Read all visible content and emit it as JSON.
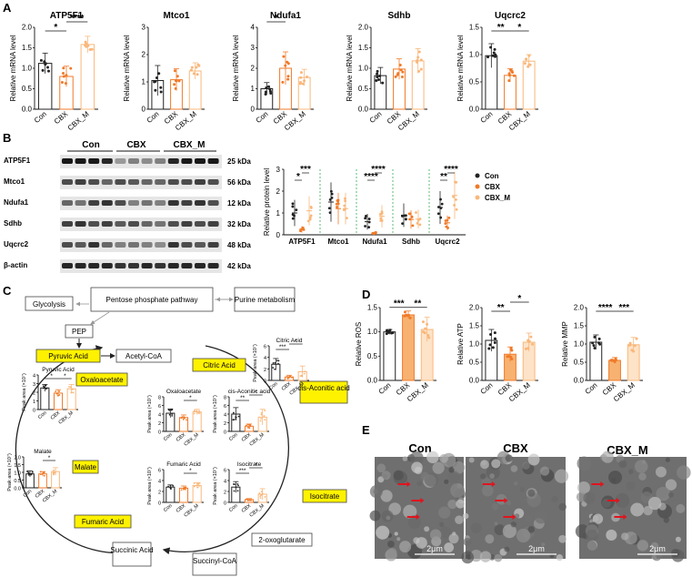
{
  "panels": {
    "A": "A",
    "B": "B",
    "C": "C",
    "D": "D",
    "E": "E"
  },
  "groups": [
    "Con",
    "CBX",
    "CBX_M"
  ],
  "colors": {
    "con": "#222222",
    "cbx": "#f07a28",
    "cbxm": "#f9b77a",
    "hl": "#fff200",
    "sig": "#1d9e3a"
  },
  "chart_data": [
    {
      "type": "bar",
      "panel": "A",
      "title": "ATP5F1",
      "ylabel": "Relative mRNA level",
      "categories": [
        "Con",
        "CBX",
        "CBX_M"
      ],
      "values": [
        1.12,
        0.8,
        1.58
      ],
      "errors": [
        0.25,
        0.25,
        0.2
      ],
      "ylim": [
        0,
        2
      ],
      "yticks": [
        "0.0",
        "0.5",
        "1.0",
        "1.5",
        "2.0"
      ],
      "sig": [
        {
          "a": 0,
          "b": 1,
          "t": "*",
          "lvl": 0
        },
        {
          "a": 1,
          "b": 2,
          "t": "****",
          "lvl": 1
        }
      ]
    },
    {
      "type": "bar",
      "panel": "A",
      "title": "Mtco1",
      "ylabel": "Relative mRNA level",
      "categories": [
        "Con",
        "CBX",
        "CBX_M"
      ],
      "values": [
        1.05,
        1.08,
        1.4
      ],
      "errors": [
        0.55,
        0.4,
        0.3
      ],
      "ylim": [
        0,
        3
      ],
      "yticks": [
        "0",
        "1",
        "2",
        "3"
      ],
      "sig": []
    },
    {
      "type": "bar",
      "panel": "A",
      "title": "Ndufa1",
      "ylabel": "Relative mRNA level",
      "categories": [
        "Con",
        "CBX",
        "CBX_M"
      ],
      "values": [
        1.0,
        2.0,
        1.55
      ],
      "errors": [
        0.3,
        0.8,
        0.4
      ],
      "ylim": [
        0,
        4
      ],
      "yticks": [
        "0",
        "1",
        "2",
        "3",
        "4"
      ],
      "sig": [
        {
          "a": 0,
          "b": 1,
          "t": "*",
          "lvl": 1
        }
      ]
    },
    {
      "type": "bar",
      "panel": "A",
      "title": "Sdhb",
      "ylabel": "Relative mRNA level",
      "categories": [
        "Con",
        "CBX",
        "CBX_M"
      ],
      "values": [
        0.82,
        0.98,
        1.18
      ],
      "errors": [
        0.2,
        0.25,
        0.3
      ],
      "ylim": [
        0,
        2
      ],
      "yticks": [
        "0.0",
        "0.5",
        "1.0",
        "1.5",
        "2.0"
      ],
      "sig": []
    },
    {
      "type": "bar",
      "panel": "A",
      "title": "Uqcrc2",
      "ylabel": "Relative mRNA level",
      "categories": [
        "Con",
        "CBX",
        "CBX_M"
      ],
      "values": [
        0.98,
        0.62,
        0.88
      ],
      "errors": [
        0.22,
        0.12,
        0.12
      ],
      "ylim": [
        0,
        1.5
      ],
      "yticks": [
        "0.0",
        "0.5",
        "1.0",
        "1.5"
      ],
      "sig": [
        {
          "a": 0,
          "b": 1,
          "t": "**",
          "lvl": 0
        },
        {
          "a": 1,
          "b": 2,
          "t": "*",
          "lvl": 0
        }
      ]
    },
    {
      "type": "scatter",
      "panel": "B",
      "ylabel": "Relative protein level",
      "categories": [
        "ATP5F1",
        "Mtco1",
        "Ndufa1",
        "Sdhb",
        "Uqcrc2"
      ],
      "ylim": [
        0,
        3
      ],
      "yticks": [
        "0",
        "1",
        "2",
        "3"
      ],
      "series": [
        {
          "name": "Con",
          "values": [
            1.0,
            1.5,
            0.6,
            0.9,
            1.25
          ]
        },
        {
          "name": "CBX",
          "values": [
            0.25,
            1.2,
            0.08,
            0.7,
            0.55
          ]
        },
        {
          "name": "CBX_M",
          "values": [
            1.1,
            1.2,
            0.85,
            0.72,
            1.8
          ]
        }
      ],
      "sig": [
        {
          "cat": 0,
          "a": 0,
          "b": 1,
          "t": "*"
        },
        {
          "cat": 0,
          "a": 1,
          "b": 2,
          "t": "***"
        },
        {
          "cat": 2,
          "a": 0,
          "b": 1,
          "t": "****"
        },
        {
          "cat": 2,
          "a": 1,
          "b": 2,
          "t": "****"
        },
        {
          "cat": 4,
          "a": 0,
          "b": 1,
          "t": "**"
        },
        {
          "cat": 4,
          "a": 1,
          "b": 2,
          "t": "****"
        }
      ]
    },
    {
      "type": "bar",
      "panel": "D",
      "ylabel": "Relative ROS",
      "categories": [
        "Con",
        "CBX",
        "CBX_M"
      ],
      "values": [
        1.0,
        1.35,
        1.05
      ],
      "errors": [
        0.05,
        0.08,
        0.25
      ],
      "ylim": [
        0,
        1.5
      ],
      "yticks": [
        "0.0",
        "0.5",
        "1.0",
        "1.5"
      ],
      "sig": [
        {
          "a": 0,
          "b": 1,
          "t": "***",
          "lvl": 0
        },
        {
          "a": 1,
          "b": 2,
          "t": "**",
          "lvl": 0
        }
      ]
    },
    {
      "type": "bar",
      "panel": "D",
      "ylabel": "Relative ATP",
      "categories": [
        "Con",
        "CBX",
        "CBX_M"
      ],
      "values": [
        1.1,
        0.72,
        1.05
      ],
      "errors": [
        0.3,
        0.2,
        0.25
      ],
      "ylim": [
        0,
        2
      ],
      "yticks": [
        "0.0",
        "0.5",
        "1.0",
        "1.5",
        "2.0"
      ],
      "sig": [
        {
          "a": 0,
          "b": 1,
          "t": "**",
          "lvl": 0
        },
        {
          "a": 1,
          "b": 2,
          "t": "*",
          "lvl": 1
        }
      ]
    },
    {
      "type": "bar",
      "panel": "D",
      "ylabel": "Relative MMP",
      "categories": [
        "Con",
        "CBX",
        "CBX_M"
      ],
      "values": [
        1.05,
        0.55,
        0.98
      ],
      "errors": [
        0.2,
        0.08,
        0.2
      ],
      "ylim": [
        0,
        2
      ],
      "yticks": [
        "0.0",
        "0.5",
        "1.0",
        "1.5",
        "2.0"
      ],
      "sig": [
        {
          "a": 0,
          "b": 1,
          "t": "****",
          "lvl": 0
        },
        {
          "a": 1,
          "b": 2,
          "t": "***",
          "lvl": 0
        }
      ]
    },
    {
      "type": "bar",
      "panel": "C",
      "title": "Citric Acid",
      "ylabel": "Peak area (×10⁷)",
      "categories": [
        "Con",
        "CBX",
        "CBX_M"
      ],
      "values": [
        2.8,
        0.6,
        1.5
      ],
      "errors": [
        1.0,
        0.3,
        1.0
      ],
      "ylim": [
        0,
        6
      ],
      "yticks": [
        "0",
        "2",
        "4",
        "6"
      ],
      "sig": [
        {
          "a": 0,
          "b": 1,
          "t": "***",
          "lvl": 0
        },
        {
          "a": 1,
          "b": 2,
          "t": "*",
          "lvl": 1
        }
      ]
    },
    {
      "type": "bar",
      "panel": "C",
      "title": "Pyruvic Acid",
      "ylabel": "Peak area (×10⁷)",
      "categories": [
        "Con",
        "CBX",
        "CBX_M"
      ],
      "values": [
        2.5,
        1.9,
        2.4
      ],
      "errors": [
        0.4,
        0.4,
        0.5
      ],
      "ylim": [
        0,
        4
      ],
      "yticks": [
        "0",
        "1",
        "2",
        "3",
        "4"
      ],
      "sig": [
        {
          "a": 0,
          "b": 1,
          "t": "*",
          "lvl": 0
        },
        {
          "a": 1,
          "b": 2,
          "t": "*",
          "lvl": 0
        }
      ]
    },
    {
      "type": "bar",
      "panel": "C",
      "title": "Oxaloacetate",
      "ylabel": "Peak area (×10⁷)",
      "categories": [
        "Con",
        "CBX",
        "CBX_M"
      ],
      "values": [
        4.2,
        3.2,
        4.5
      ],
      "errors": [
        1.0,
        0.6,
        0.6
      ],
      "ylim": [
        0,
        8
      ],
      "yticks": [
        "0",
        "2",
        "4",
        "6",
        "8"
      ],
      "sig": [
        {
          "a": 1,
          "b": 2,
          "t": "*",
          "lvl": 0
        }
      ]
    },
    {
      "type": "bar",
      "panel": "C",
      "title": "cis-Aconitic acid",
      "ylabel": "Peak area (×10⁷)",
      "categories": [
        "Con",
        "CBX",
        "CBX_M"
      ],
      "values": [
        4.0,
        1.2,
        3.3
      ],
      "errors": [
        1.5,
        0.5,
        1.8
      ],
      "ylim": [
        0,
        8
      ],
      "yticks": [
        "0",
        "2",
        "4",
        "6",
        "8"
      ],
      "sig": [
        {
          "a": 0,
          "b": 1,
          "t": "**",
          "lvl": 0
        },
        {
          "a": 1,
          "b": 2,
          "t": "*",
          "lvl": 1
        }
      ]
    },
    {
      "type": "bar",
      "panel": "C",
      "title": "Malate",
      "ylabel": "Peak area (×10⁷)",
      "categories": [
        "Con",
        "CBX",
        "CBX_M"
      ],
      "values": [
        0.9,
        0.9,
        1.05
      ],
      "errors": [
        0.2,
        0.15,
        0.25
      ],
      "ylim": [
        0,
        2
      ],
      "yticks": [
        "0.0",
        "0.5",
        "1.0",
        "1.5",
        "2.0"
      ],
      "sig": [
        {
          "a": 1,
          "b": 2,
          "t": "*",
          "lvl": 0
        }
      ]
    },
    {
      "type": "bar",
      "panel": "C",
      "title": "Fumaric Acid",
      "ylabel": "Peak area (×10⁷)",
      "categories": [
        "Con",
        "CBX",
        "CBX_M"
      ],
      "values": [
        2.8,
        2.6,
        3.1
      ],
      "errors": [
        0.4,
        0.4,
        0.5
      ],
      "ylim": [
        0,
        6
      ],
      "yticks": [
        "0",
        "2",
        "4",
        "6"
      ],
      "sig": [
        {
          "a": 1,
          "b": 2,
          "t": "*",
          "lvl": 0
        }
      ]
    },
    {
      "type": "bar",
      "panel": "C",
      "title": "Isocitrate",
      "ylabel": "Peak area (×10⁷)",
      "categories": [
        "Con",
        "CBX",
        "CBX_M"
      ],
      "values": [
        2.8,
        0.5,
        1.5
      ],
      "errors": [
        1.0,
        0.2,
        1.0
      ],
      "ylim": [
        0,
        6
      ],
      "yticks": [
        "0",
        "2",
        "4",
        "6"
      ],
      "sig": [
        {
          "a": 0,
          "b": 1,
          "t": "***",
          "lvl": 0
        },
        {
          "a": 1,
          "b": 2,
          "t": "*",
          "lvl": 1
        }
      ]
    }
  ],
  "blot": {
    "proteins": [
      "ATP5F1",
      "Mtco1",
      "Ndufa1",
      "Sdhb",
      "Uqcrc2",
      "β-actin"
    ],
    "kda": [
      "25 kDa",
      "56 kDa",
      "12 kDa",
      "32 kDa",
      "48 kDa",
      "42 kDa"
    ],
    "groups": [
      "Con",
      "CBX",
      "CBX_M"
    ]
  },
  "pathway": {
    "glycolysis": "Glycolysis",
    "ppp": "Pentose phosphate pathway",
    "purine": "Purine metabolism",
    "pep": "PEP",
    "pyruvic": "Pyruvic Acid",
    "acetyl": "Acetyl-CoA",
    "citric": "Citric Acid",
    "oxalo": "Oxaloacetate",
    "cisacon": "cis-Aconitic acid",
    "malate": "Malate",
    "isocitrate": "Isocitrate",
    "fumaric": "Fumaric Acid",
    "succinic": "Succinic Acid",
    "succinylcoa": "Succinyl-CoA",
    "oxoglut": "2-oxoglutarate"
  },
  "legend": [
    "Con",
    "CBX",
    "CBX_M"
  ],
  "em": {
    "titles": [
      "Con",
      "CBX",
      "CBX_M"
    ],
    "scale": "2μm"
  }
}
